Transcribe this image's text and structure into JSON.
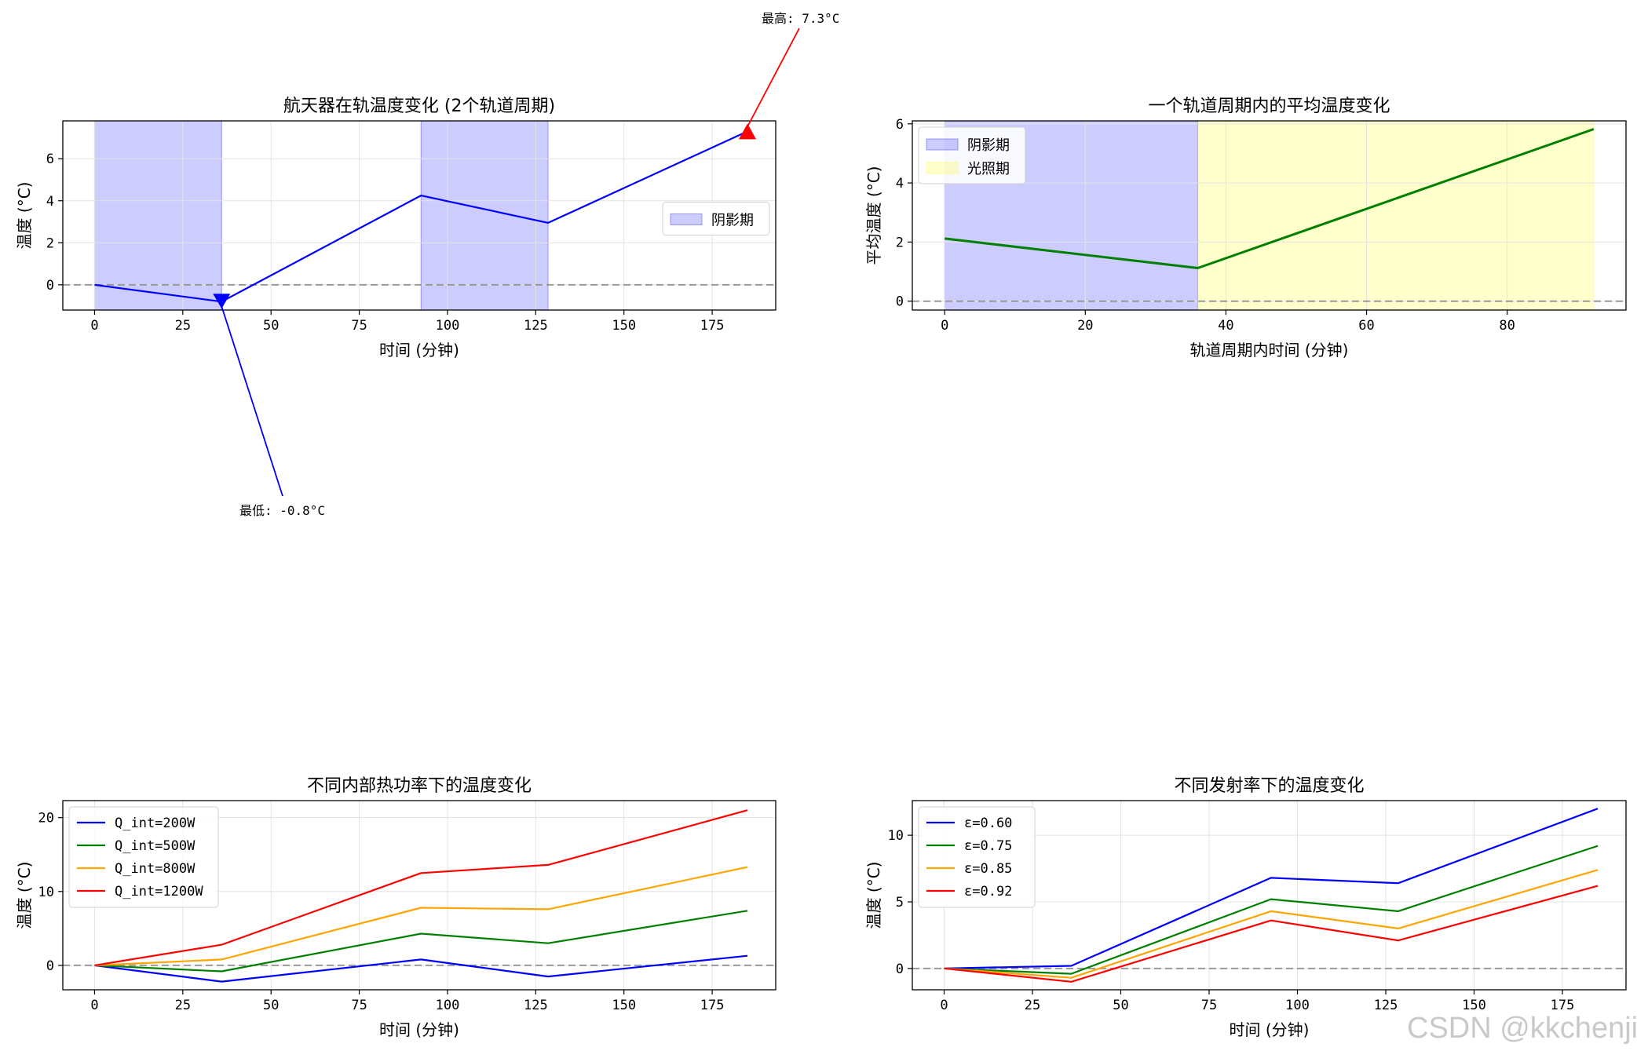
{
  "chart_data": [
    {
      "type": "line",
      "title": "航天器在轨温度变化 (2个轨道周期)",
      "xlabel": "时间 (分钟)",
      "ylabel": "温度 (°C)",
      "xlim": [
        -9,
        193
      ],
      "ylim": [
        -1.2,
        7.8
      ],
      "xticks": [
        0,
        25,
        50,
        75,
        100,
        125,
        150,
        175
      ],
      "yticks": [
        0,
        2,
        4,
        6
      ],
      "grid": true,
      "legend": {
        "position": "center-right",
        "entries": [
          {
            "label": "阴影期",
            "color": "#0000ff",
            "kind": "patch"
          }
        ]
      },
      "shaded_regions": [
        {
          "x": [
            0,
            36
          ],
          "color": "#0000ff",
          "alpha": 0.2
        },
        {
          "x": [
            92.5,
            128.5
          ],
          "color": "#0000ff",
          "alpha": 0.2
        }
      ],
      "hline": {
        "y": 0,
        "style": "dashed",
        "color": "#999999"
      },
      "series": [
        {
          "color": "#0000ff",
          "x": [
            0,
            36,
            92.5,
            128.5,
            185
          ],
          "y": [
            0,
            -0.8,
            4.25,
            2.95,
            7.3
          ]
        }
      ],
      "markers": [
        {
          "x": 36,
          "y": -0.8,
          "shape": "triangle-down",
          "color": "#0000ff"
        },
        {
          "x": 185,
          "y": 7.3,
          "shape": "triangle-up",
          "color": "#ff0000"
        }
      ],
      "annotations": [
        {
          "text": "最低: -0.8°C",
          "point_x": 36,
          "point_y": -0.8,
          "color": "#0000ff"
        },
        {
          "text": "最高: 7.3°C",
          "point_x": 185,
          "point_y": 7.3,
          "color": "#ff0000"
        }
      ]
    },
    {
      "type": "line",
      "title": "一个轨道周期内的平均温度变化",
      "xlabel": "轨道周期内时间 (分钟)",
      "ylabel": "平均温度 (°C)",
      "xlim": [
        -4.6,
        96.9
      ],
      "ylim": [
        -0.3,
        6.1
      ],
      "xticks": [
        0,
        20,
        40,
        60,
        80
      ],
      "yticks": [
        0,
        2,
        4,
        6
      ],
      "grid": true,
      "legend": {
        "position": "upper-left",
        "entries": [
          {
            "label": "阴影期",
            "color": "#0000ff",
            "kind": "patch"
          },
          {
            "label": "光照期",
            "color": "#ffff00",
            "kind": "patch"
          }
        ]
      },
      "shaded_regions": [
        {
          "x": [
            0,
            36
          ],
          "color": "#0000ff",
          "alpha": 0.2
        },
        {
          "x": [
            36,
            92.3
          ],
          "color": "#ffff00",
          "alpha": 0.2
        }
      ],
      "hline": {
        "y": 0,
        "style": "dashed",
        "color": "#999999"
      },
      "series": [
        {
          "color": "#008000",
          "width": 3,
          "x": [
            0,
            36,
            92.3
          ],
          "y": [
            2.12,
            1.12,
            5.82
          ]
        }
      ]
    },
    {
      "type": "line",
      "title": "不同内部热功率下的温度变化",
      "xlabel": "时间 (分钟)",
      "ylabel": "温度 (°C)",
      "xlim": [
        -9,
        193
      ],
      "ylim": [
        -3.3,
        22.3
      ],
      "xticks": [
        0,
        25,
        50,
        75,
        100,
        125,
        150,
        175
      ],
      "yticks": [
        0,
        10,
        20
      ],
      "grid": true,
      "legend": {
        "position": "upper-left"
      },
      "hline": {
        "y": 0,
        "style": "dashed",
        "color": "#999999"
      },
      "series": [
        {
          "name": "Q_int=200W",
          "color": "#0000ff",
          "x": [
            0,
            36,
            92.5,
            128.5,
            185
          ],
          "y": [
            0,
            -2.2,
            0.8,
            -1.5,
            1.3
          ]
        },
        {
          "name": "Q_int=500W",
          "color": "#008000",
          "x": [
            0,
            36,
            92.5,
            128.5,
            185
          ],
          "y": [
            0,
            -0.8,
            4.3,
            3.0,
            7.4
          ]
        },
        {
          "name": "Q_int=800W",
          "color": "#ffa500",
          "x": [
            0,
            36,
            92.5,
            128.5,
            185
          ],
          "y": [
            0,
            0.8,
            7.8,
            7.6,
            13.3
          ]
        },
        {
          "name": "Q_int=1200W",
          "color": "#ff0000",
          "x": [
            0,
            36,
            92.5,
            128.5,
            185
          ],
          "y": [
            0,
            2.8,
            12.5,
            13.6,
            21.0
          ]
        }
      ]
    },
    {
      "type": "line",
      "title": "不同发射率下的温度变化",
      "xlabel": "时间 (分钟)",
      "ylabel": "温度 (°C)",
      "xlim": [
        -9,
        193
      ],
      "ylim": [
        -1.6,
        12.6
      ],
      "xticks": [
        0,
        25,
        50,
        75,
        100,
        125,
        150,
        175
      ],
      "yticks": [
        0,
        5,
        10
      ],
      "grid": true,
      "legend": {
        "position": "upper-left"
      },
      "hline": {
        "y": 0,
        "style": "dashed",
        "color": "#999999"
      },
      "series": [
        {
          "name": "ε=0.60",
          "color": "#0000ff",
          "x": [
            0,
            36,
            92.5,
            128.5,
            185
          ],
          "y": [
            0,
            0.2,
            6.8,
            6.4,
            12.0
          ]
        },
        {
          "name": "ε=0.75",
          "color": "#008000",
          "x": [
            0,
            36,
            92.5,
            128.5,
            185
          ],
          "y": [
            0,
            -0.4,
            5.2,
            4.3,
            9.2
          ]
        },
        {
          "name": "ε=0.85",
          "color": "#ffa500",
          "x": [
            0,
            36,
            92.5,
            128.5,
            185
          ],
          "y": [
            0,
            -0.7,
            4.3,
            3.0,
            7.4
          ]
        },
        {
          "name": "ε=0.92",
          "color": "#ff0000",
          "x": [
            0,
            36,
            92.5,
            128.5,
            185
          ],
          "y": [
            0,
            -1.0,
            3.6,
            2.1,
            6.2
          ]
        }
      ]
    }
  ],
  "watermark": "CSDN @kkchenji"
}
